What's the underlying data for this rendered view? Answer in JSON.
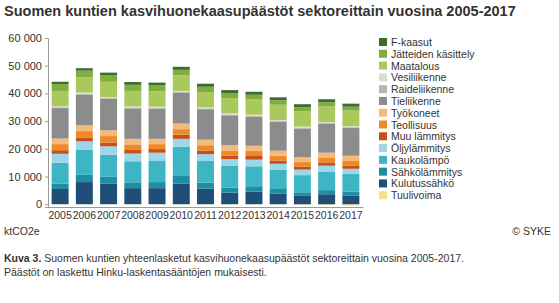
{
  "chart_data": {
    "type": "bar",
    "stacked": true,
    "title": "Suomen kuntien kasvihuonekaasupäästöt sektoreittain vuosina 2005-2017",
    "y_label": "ktCO2e",
    "source": "© SYKE",
    "caption_label": "Kuva 3.",
    "caption": [
      "Suomen kuntien yhteenlasketut kasvihuonekaasupäästöt sektoreittain vuosina 2005-2017.",
      "Päästöt on laskettu Hinku-laskentasääntöjen mukaisesti."
    ],
    "categories": [
      "2005",
      "2006",
      "2007",
      "2008",
      "2009",
      "2010",
      "2011",
      "2012",
      "2013",
      "2014",
      "2015",
      "2016",
      "2017"
    ],
    "ylim": [
      -1000,
      60000
    ],
    "yticks": [
      0,
      {
        "value": 10000,
        "label": "10 000"
      },
      {
        "value": 20000,
        "label": "20 000"
      },
      {
        "value": 30000,
        "label": "30 000"
      },
      {
        "value": 40000,
        "label": "40 000"
      },
      {
        "value": 50000,
        "label": "50 000"
      },
      {
        "value": 60000,
        "label": "60 000"
      }
    ],
    "grid": false,
    "legend": "right",
    "series": [
      {
        "name": "Tuulivoima",
        "color": "#f6e08c",
        "values": [
          -20,
          -20,
          -20,
          -30,
          -30,
          -40,
          -50,
          -60,
          -80,
          -110,
          -230,
          -300,
          -480
        ]
      },
      {
        "name": "Kulutussähkö",
        "color": "#1f4e79",
        "values": [
          5500,
          8000,
          7500,
          5800,
          5800,
          7500,
          5600,
          4200,
          4600,
          3900,
          3000,
          3600,
          3200
        ]
      },
      {
        "name": "Sähkölämmitys",
        "color": "#1f8ea5",
        "values": [
          2000,
          2600,
          2400,
          2100,
          2200,
          2700,
          2200,
          1800,
          1900,
          1600,
          1300,
          1500,
          1400
        ]
      },
      {
        "name": "Kaukolämpö",
        "color": "#3db5c4",
        "values": [
          7500,
          9000,
          8000,
          7600,
          7800,
          10500,
          7800,
          7800,
          7200,
          6900,
          6200,
          6700,
          6300
        ]
      },
      {
        "name": "Öljylämmitys",
        "color": "#9bd7e6",
        "values": [
          3200,
          3100,
          3000,
          2800,
          2800,
          2900,
          2500,
          2500,
          2400,
          2200,
          2000,
          2100,
          1900
        ]
      },
      {
        "name": "Muu lämmitys",
        "color": "#c4501e",
        "values": [
          1300,
          1400,
          1400,
          1300,
          1300,
          1500,
          1300,
          1300,
          1300,
          1200,
          1100,
          1200,
          1200
        ]
      },
      {
        "name": "Teollisuus",
        "color": "#ee8a26",
        "values": [
          2200,
          2300,
          2300,
          2000,
          1800,
          2000,
          1900,
          1800,
          1800,
          1700,
          1600,
          1600,
          1600
        ]
      },
      {
        "name": "Työkoneet",
        "color": "#f6b97c",
        "values": [
          2000,
          2100,
          2100,
          2000,
          1900,
          2000,
          2000,
          1900,
          1900,
          1800,
          1800,
          1900,
          1900
        ]
      },
      {
        "name": "Tieliikenne",
        "color": "#8c8c8c",
        "values": [
          11000,
          11100,
          11300,
          11000,
          10900,
          11100,
          11000,
          10800,
          10500,
          10400,
          10300,
          10400,
          10000
        ]
      },
      {
        "name": "Raideliikenne",
        "color": "#b5b5b5",
        "values": [
          300,
          300,
          300,
          300,
          300,
          300,
          300,
          300,
          300,
          300,
          300,
          300,
          300
        ]
      },
      {
        "name": "Vesiliikenne",
        "color": "#d9dfc8",
        "values": [
          400,
          400,
          400,
          400,
          400,
          400,
          400,
          400,
          400,
          400,
          400,
          400,
          400
        ]
      },
      {
        "name": "Maatalous",
        "color": "#a9c95c",
        "values": [
          5500,
          5500,
          5500,
          5600,
          5600,
          5600,
          5500,
          5500,
          5500,
          5500,
          5500,
          5600,
          5600
        ]
      },
      {
        "name": "Jätteiden käsittely",
        "color": "#7fae3e",
        "values": [
          2500,
          2400,
          2300,
          2200,
          2100,
          2000,
          1900,
          1800,
          1700,
          1600,
          1500,
          1500,
          1400
        ]
      },
      {
        "name": "F-kaasut",
        "color": "#3f6b2c",
        "values": [
          800,
          900,
          1000,
          1000,
          1000,
          1100,
          1100,
          1100,
          1100,
          1100,
          1100,
          1100,
          1100
        ]
      }
    ]
  }
}
